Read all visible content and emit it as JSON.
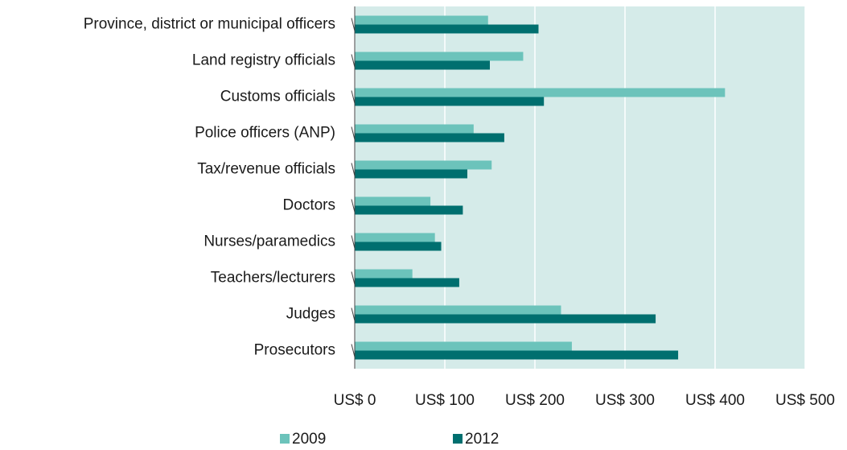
{
  "chart_data": {
    "type": "hbar",
    "categories": [
      "Province, district or municipal officers",
      "Land registry officials",
      "Customs officials",
      "Police officers (ANP)",
      "Tax/revenue officials",
      "Doctors",
      "Nurses/paramedics",
      "Teachers/lecturers",
      "Judges",
      "Prosecutors"
    ],
    "series": [
      {
        "name": "2009",
        "color": "#6cc3bb",
        "values": [
          148,
          187,
          411,
          132,
          152,
          84,
          89,
          64,
          229,
          241
        ]
      },
      {
        "name": "2012",
        "color": "#006f6f",
        "values": [
          204,
          150,
          210,
          166,
          125,
          120,
          96,
          116,
          334,
          359
        ]
      }
    ],
    "xlim": [
      0,
      500
    ],
    "xticks": [
      {
        "value": 0,
        "label": "US$ 0"
      },
      {
        "value": 100,
        "label": "US$ 100"
      },
      {
        "value": 200,
        "label": "US$ 200"
      },
      {
        "value": 300,
        "label": "US$ 300"
      },
      {
        "value": 400,
        "label": "US$ 400"
      },
      {
        "value": 500,
        "label": "US$ 500"
      }
    ],
    "grid": true,
    "legend": "bottom",
    "plot_background": "#d5ebe9"
  }
}
